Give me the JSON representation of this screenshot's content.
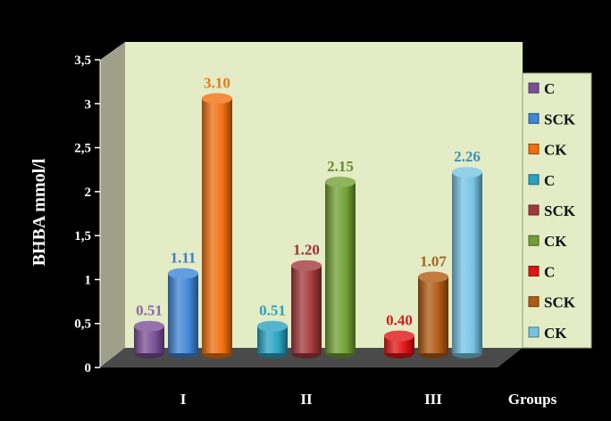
{
  "chart_data": {
    "type": "bar",
    "ylabel": "BHBA mmol/l",
    "xlabel": "Groups",
    "ylim": [
      0,
      3.5
    ],
    "yticks": [
      {
        "value": 0,
        "label": "0"
      },
      {
        "value": 0.5,
        "label": "0,5"
      },
      {
        "value": 1,
        "label": "1"
      },
      {
        "value": 1.5,
        "label": "1,5"
      },
      {
        "value": 2,
        "label": "2"
      },
      {
        "value": 2.5,
        "label": "2,5"
      },
      {
        "value": 3,
        "label": "3"
      },
      {
        "value": 3.5,
        "label": "3,5"
      }
    ],
    "groups": [
      {
        "label": "I",
        "bars": [
          {
            "legend": "C",
            "value": 0.51,
            "label": "0.51",
            "color": "#7a4f96",
            "label_color": "#8a6aa8"
          },
          {
            "legend": "SCK",
            "value": 1.11,
            "label": "1.11",
            "color": "#3f86d6",
            "label_color": "#3f7fc8"
          },
          {
            "legend": "CK",
            "value": 3.1,
            "label": "3.10",
            "color": "#f07010",
            "label_color": "#e8771c"
          }
        ]
      },
      {
        "label": "II",
        "bars": [
          {
            "legend": "C",
            "value": 0.51,
            "label": "0.51",
            "color": "#2aa3c2",
            "label_color": "#2fa0bf"
          },
          {
            "legend": "SCK",
            "value": 1.2,
            "label": "1.20",
            "color": "#a3383b",
            "label_color": "#9b3236"
          },
          {
            "legend": "CK",
            "value": 2.15,
            "label": "2.15",
            "color": "#72a034",
            "label_color": "#6a8a32"
          }
        ]
      },
      {
        "label": "III",
        "bars": [
          {
            "legend": "C",
            "value": 0.4,
            "label": "0.40",
            "color": "#e01515",
            "label_color": "#d42020"
          },
          {
            "legend": "SCK",
            "value": 1.07,
            "label": "1.07",
            "color": "#b05a12",
            "label_color": "#a5651e"
          },
          {
            "legend": "CK",
            "value": 2.26,
            "label": "2.26",
            "color": "#76c4e4",
            "label_color": "#3a8fb8"
          }
        ]
      }
    ],
    "legend_position": "right",
    "colors": {
      "background": "#000000",
      "plot_wall": "#e3ecc4",
      "side_wall": "#9ea08a",
      "floor": "#4a4a4a",
      "legend_bg": "#e3ecc4",
      "text": "#ffffff"
    }
  }
}
